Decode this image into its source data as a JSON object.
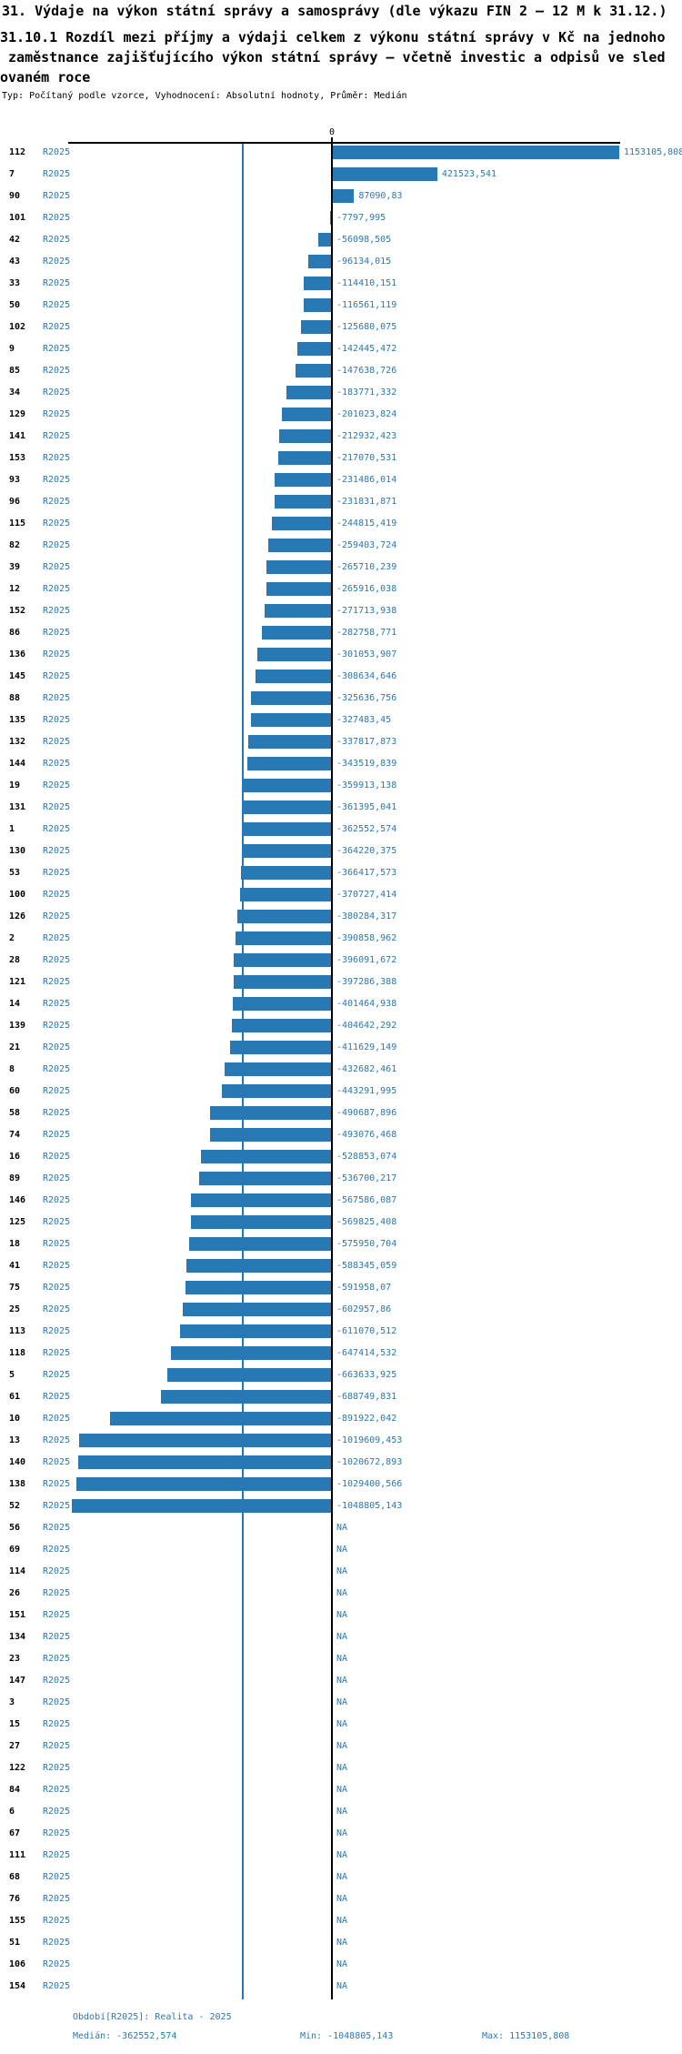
{
  "header": {
    "title": "31. Výdaje na výkon státní správy a samosprávy (dle výkazu FIN 2 – 12 M k 31.12.)",
    "subtitle_lines": [
      "31.10.1 Rozdíl mezi příjmy a výdaji celkem z výkonu státní správy v Kč na jednoho",
      " zaměstnance zajišťujícího výkon státní správy – včetně investic a odpisů ve sled",
      "ovaném roce"
    ],
    "meta": "Typ: Počítaný podle vzorce, Vyhodnocení: Absolutní hodnoty, Průměr: Medián"
  },
  "chart_data": {
    "type": "bar",
    "orientation": "horizontal",
    "title": "31.10.1 Rozdíl mezi příjmy a výdaji celkem z výkonu státní správy v Kč na jednoho zaměstnance zajišťujícího výkon státní správy – včetně investic a odpisů ve sledovaném roce",
    "series_label": "R2025",
    "zero_label": "0",
    "na_label": "NA",
    "bar_color": "#2878b4",
    "grid": false,
    "legend": false,
    "xlim": [
      -1048805.143,
      1153105.808
    ],
    "median": -362552.574,
    "min": -1048805.143,
    "max": 1153105.808,
    "categories": [
      "112",
      "7",
      "90",
      "101",
      "42",
      "43",
      "33",
      "50",
      "102",
      "9",
      "85",
      "34",
      "129",
      "141",
      "153",
      "93",
      "96",
      "115",
      "82",
      "39",
      "12",
      "152",
      "86",
      "136",
      "145",
      "88",
      "135",
      "132",
      "144",
      "19",
      "131",
      "1",
      "130",
      "53",
      "100",
      "126",
      "2",
      "28",
      "121",
      "14",
      "139",
      "21",
      "8",
      "60",
      "58",
      "74",
      "16",
      "89",
      "146",
      "125",
      "18",
      "41",
      "75",
      "25",
      "113",
      "118",
      "5",
      "61",
      "10",
      "13",
      "140",
      "138",
      "52",
      "56",
      "69",
      "114",
      "26",
      "151",
      "134",
      "23",
      "147",
      "3",
      "15",
      "27",
      "122",
      "84",
      "6",
      "67",
      "111",
      "68",
      "76",
      "155",
      "51",
      "106",
      "154"
    ],
    "values": [
      1153105.808,
      421523.541,
      87090.83,
      -7797.995,
      -56098.505,
      -96134.015,
      -114410.151,
      -116561.119,
      -125680.075,
      -142445.472,
      -147638.726,
      -183771.332,
      -201023.824,
      -212932.423,
      -217070.531,
      -231486.014,
      -231831.871,
      -244815.419,
      -259403.724,
      -265710.239,
      -265916.038,
      -271713.938,
      -282758.771,
      -301053.907,
      -308634.646,
      -325636.756,
      -327483.45,
      -337817.873,
      -343519.839,
      -359913.138,
      -361395.041,
      -362552.574,
      -364220.375,
      -366417.573,
      -370727.414,
      -380284.317,
      -390858.962,
      -396091.672,
      -397286.388,
      -401464.938,
      -404642.292,
      -411629.149,
      -432682.461,
      -443291.995,
      -490687.896,
      -493076.468,
      -528853.074,
      -536700.217,
      -567586.087,
      -569825.408,
      -575950.704,
      -588345.059,
      -591958.07,
      -602957.86,
      -611070.512,
      -647414.532,
      -663633.925,
      -688749.831,
      -891922.042,
      -1019609.453,
      -1020672.893,
      -1029400.566,
      -1048805.143,
      null,
      null,
      null,
      null,
      null,
      null,
      null,
      null,
      null,
      null,
      null,
      null,
      null,
      null,
      null,
      null,
      null,
      null,
      null,
      null,
      null,
      null
    ],
    "value_labels": [
      "1153105,808",
      "421523,541",
      "87090,83",
      "-7797,995",
      "-56098,505",
      "-96134,015",
      "-114410,151",
      "-116561,119",
      "-125680,075",
      "-142445,472",
      "-147638,726",
      "-183771,332",
      "-201023,824",
      "-212932,423",
      "-217070,531",
      "-231486,014",
      "-231831,871",
      "-244815,419",
      "-259403,724",
      "-265710,239",
      "-265916,038",
      "-271713,938",
      "-282758,771",
      "-301053,907",
      "-308634,646",
      "-325636,756",
      "-327483,45",
      "-337817,873",
      "-343519,839",
      "-359913,138",
      "-361395,041",
      "-362552,574",
      "-364220,375",
      "-366417,573",
      "-370727,414",
      "-380284,317",
      "-390858,962",
      "-396091,672",
      "-397286,388",
      "-401464,938",
      "-404642,292",
      "-411629,149",
      "-432682,461",
      "-443291,995",
      "-490687,896",
      "-493076,468",
      "-528853,074",
      "-536700,217",
      "-567586,087",
      "-569825,408",
      "-575950,704",
      "-588345,059",
      "-591958,07",
      "-602957,86",
      "-611070,512",
      "-647414,532",
      "-663633,925",
      "-688749,831",
      "-891922,042",
      "-1019609,453",
      "-1020672,893",
      "-1029400,566",
      "-1048805,143",
      "NA",
      "NA",
      "NA",
      "NA",
      "NA",
      "NA",
      "NA",
      "NA",
      "NA",
      "NA",
      "NA",
      "NA",
      "NA",
      "NA",
      "NA",
      "NA",
      "NA",
      "NA",
      "NA",
      "NA",
      "NA",
      "NA"
    ]
  },
  "footer": {
    "period": "Období[R2025]: Realita - 2025",
    "median": "Medián: -362552,574",
    "min": "Min: -1048805,143",
    "max": "Max: 1153105,808"
  }
}
